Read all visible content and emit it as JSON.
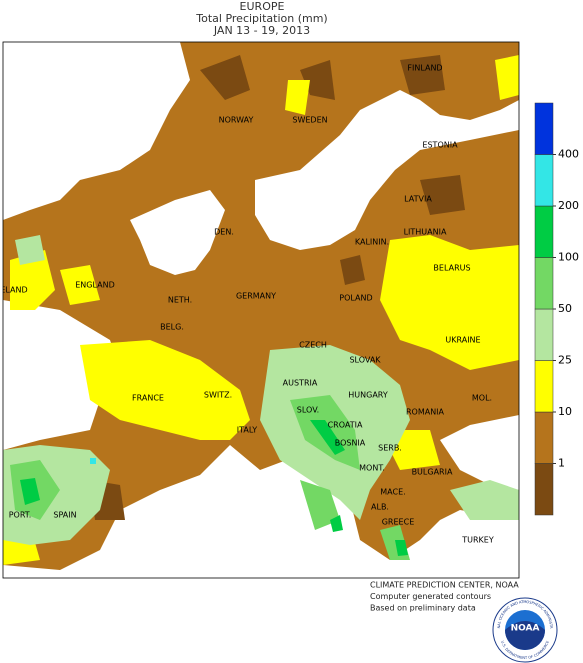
{
  "header": {
    "title": "EUROPE",
    "subtitle": "Total Precipitation (mm)",
    "dates": "JAN 13 - 19, 2013"
  },
  "labels": [
    "FINLAND",
    "NORWAY",
    "SWEDEN",
    "ESTONIA",
    "LATVIA",
    "LITHUANIA",
    "DEN.",
    "KALININ.",
    "IRELAND",
    "ENGLAND",
    "BELARUS",
    "NETH.",
    "GERMANY",
    "POLAND",
    "BELG.",
    "CZECH",
    "UKRAINE",
    "SLOVAK",
    "AUSTRIA",
    "HUNGARY",
    "FRANCE",
    "SWITZ.",
    "MOL.",
    "ROMANIA",
    "SLOV.",
    "CROATIA",
    "ITALY",
    "BOSNIA",
    "SERB.",
    "MONT.",
    "BULGARIA",
    "MACE.",
    "ALB.",
    "PORT.",
    "SPAIN",
    "GREECE",
    "TURKEY"
  ],
  "legend": {
    "ticks": [
      1,
      10,
      25,
      50,
      100,
      200,
      400
    ],
    "colors": [
      "#7b4a12",
      "#b5741c",
      "#ffff00",
      "#b4e6a0",
      "#73d864",
      "#00cc44",
      "#33e6e6",
      "#0033dd"
    ]
  },
  "credits": [
    "CLIMATE PREDICTION CENTER, NOAA",
    "Computer generated contours",
    "Based on preliminary data"
  ],
  "logo": {
    "name": "NOAA",
    "ring_top": "NATIONAL OCEANIC AND ATMOSPHERIC ADMINISTRATION",
    "ring_bottom": "U.S. DEPARTMENT OF COMMERCE"
  }
}
